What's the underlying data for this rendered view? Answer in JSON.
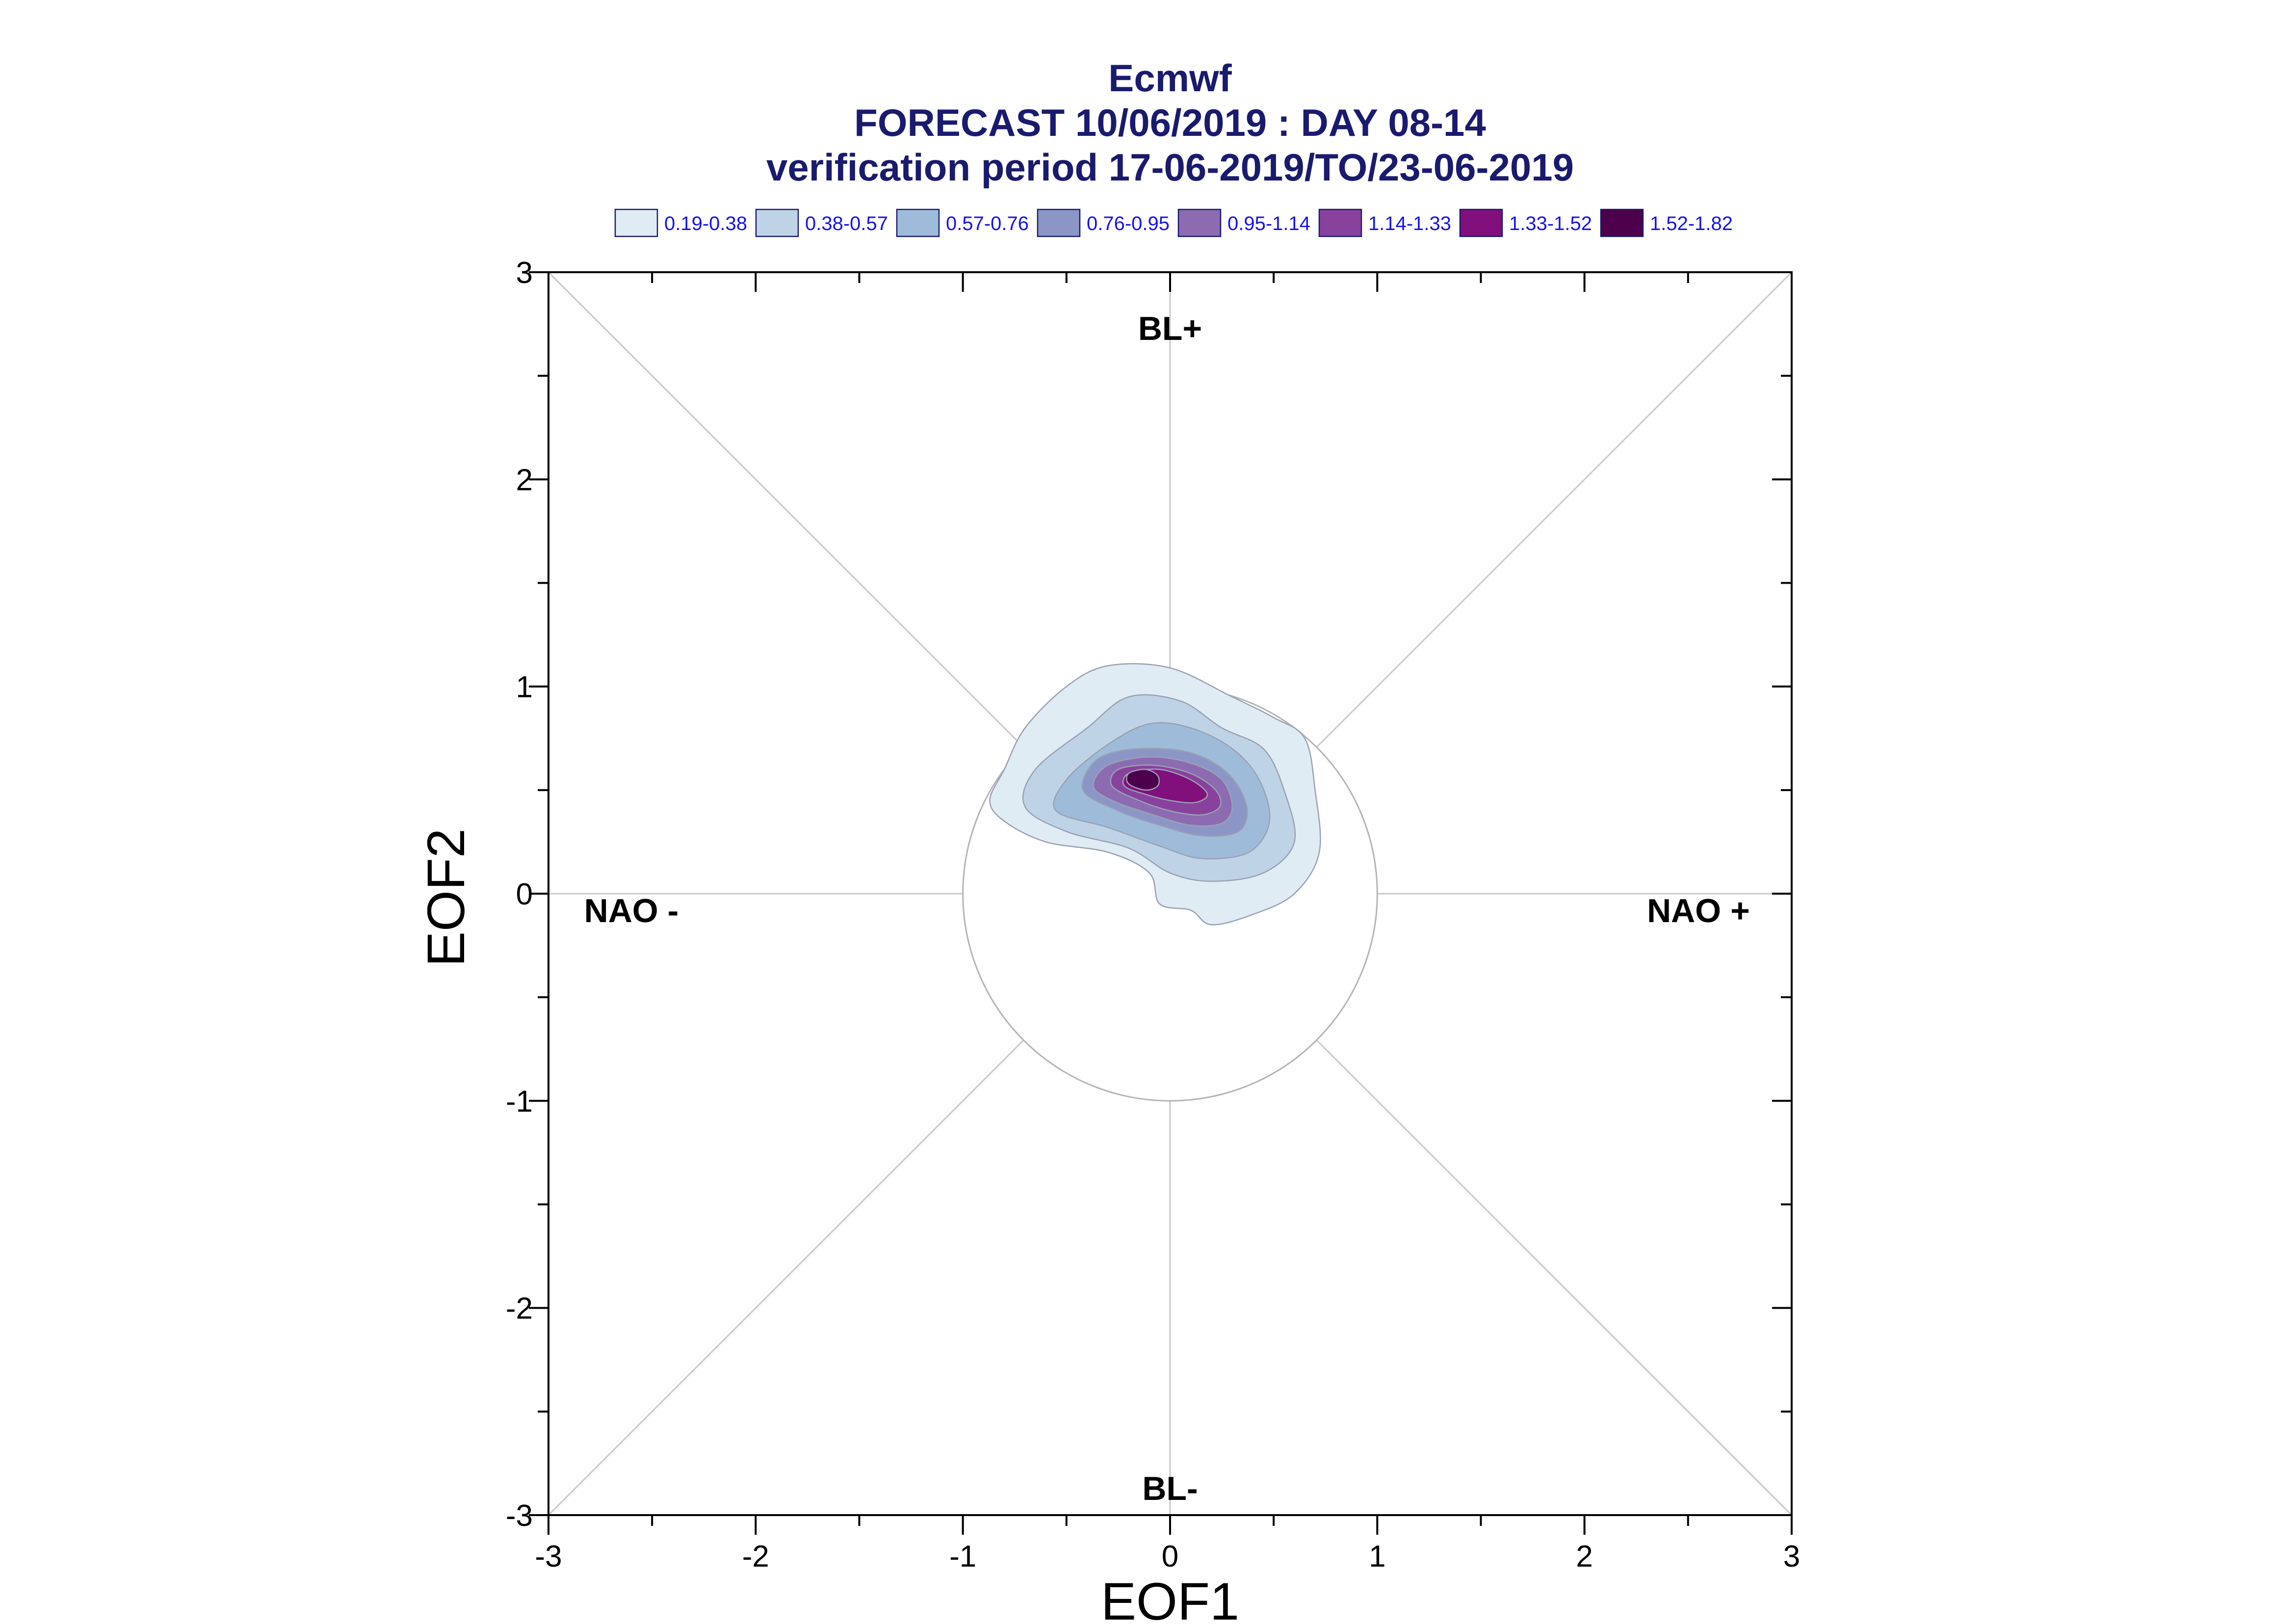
{
  "chart_data": {
    "type": "contour",
    "title": "Ecmwf",
    "subtitle_lines": [
      "FORECAST 10/06/2019 : DAY 08-14",
      "verification period 17-06-2019/TO/23-06-2019"
    ],
    "xlabel": "EOF1",
    "ylabel": "EOF2",
    "xlim": [
      -3,
      3
    ],
    "ylim": [
      -3,
      3
    ],
    "x_ticks": [
      "-3",
      "-2",
      "-1",
      "0",
      "1",
      "2",
      "3"
    ],
    "y_ticks": [
      "3",
      "2",
      "1",
      "0",
      "-1",
      "-2",
      "-3"
    ],
    "grid": false,
    "reference_circle_radius": 1,
    "regime_labels": [
      {
        "text": "BL+",
        "x": 0,
        "y": 2.73
      },
      {
        "text": "BL-",
        "x": 0,
        "y": -2.87
      },
      {
        "text": "NAO -",
        "x": -2.6,
        "y": -0.08
      },
      {
        "text": "NAO +",
        "x": 2.55,
        "y": -0.08
      }
    ],
    "legend": [
      {
        "label": "0.19-0.38",
        "color": "#e0ecf4"
      },
      {
        "label": "0.38-0.57",
        "color": "#bfd3e6"
      },
      {
        "label": "0.57-0.76",
        "color": "#9ebcda"
      },
      {
        "label": "0.76-0.95",
        "color": "#8c96c6"
      },
      {
        "label": "0.95-1.14",
        "color": "#8c6bb1"
      },
      {
        "label": "1.14-1.33",
        "color": "#88419d"
      },
      {
        "label": "1.33-1.52",
        "color": "#810f7c"
      },
      {
        "label": "1.52-1.82",
        "color": "#4d004b"
      }
    ],
    "density_levels": [
      {
        "range": "0.19-0.38",
        "color": "#e0ecf4",
        "outline": [
          [
            -0.5,
            1.0
          ],
          [
            -0.3,
            1.1
          ],
          [
            0.0,
            1.09
          ],
          [
            0.3,
            0.95
          ],
          [
            0.5,
            0.85
          ],
          [
            0.65,
            0.75
          ],
          [
            0.7,
            0.5
          ],
          [
            0.72,
            0.2
          ],
          [
            0.6,
            0.0
          ],
          [
            0.4,
            -0.1
          ],
          [
            0.2,
            -0.15
          ],
          [
            0.1,
            -0.08
          ],
          [
            -0.05,
            -0.05
          ],
          [
            -0.1,
            0.1
          ],
          [
            -0.3,
            0.2
          ],
          [
            -0.6,
            0.25
          ],
          [
            -0.8,
            0.35
          ],
          [
            -0.87,
            0.45
          ],
          [
            -0.8,
            0.6
          ],
          [
            -0.7,
            0.8
          ]
        ]
      },
      {
        "range": "0.38-0.57",
        "color": "#bfd3e6",
        "outline": [
          [
            -0.4,
            0.8
          ],
          [
            -0.2,
            0.95
          ],
          [
            0.05,
            0.93
          ],
          [
            0.25,
            0.8
          ],
          [
            0.45,
            0.7
          ],
          [
            0.55,
            0.5
          ],
          [
            0.6,
            0.25
          ],
          [
            0.45,
            0.1
          ],
          [
            0.2,
            0.06
          ],
          [
            0.0,
            0.1
          ],
          [
            -0.2,
            0.22
          ],
          [
            -0.5,
            0.3
          ],
          [
            -0.7,
            0.42
          ],
          [
            -0.65,
            0.6
          ]
        ]
      },
      {
        "range": "0.57-0.76",
        "color": "#9ebcda",
        "outline": [
          [
            -0.3,
            0.72
          ],
          [
            -0.1,
            0.82
          ],
          [
            0.1,
            0.8
          ],
          [
            0.3,
            0.7
          ],
          [
            0.43,
            0.55
          ],
          [
            0.48,
            0.35
          ],
          [
            0.38,
            0.2
          ],
          [
            0.15,
            0.17
          ],
          [
            -0.05,
            0.23
          ],
          [
            -0.3,
            0.32
          ],
          [
            -0.55,
            0.4
          ],
          [
            -0.5,
            0.55
          ]
        ]
      },
      {
        "range": "0.76-0.95",
        "color": "#8c96c6",
        "outline": [
          [
            -0.35,
            0.65
          ],
          [
            -0.15,
            0.7
          ],
          [
            0.1,
            0.68
          ],
          [
            0.28,
            0.58
          ],
          [
            0.37,
            0.42
          ],
          [
            0.33,
            0.3
          ],
          [
            0.15,
            0.28
          ],
          [
            -0.05,
            0.33
          ],
          [
            -0.25,
            0.4
          ],
          [
            -0.42,
            0.5
          ]
        ]
      },
      {
        "range": "0.95-1.14",
        "color": "#8c6bb1",
        "outline": [
          [
            -0.3,
            0.62
          ],
          [
            -0.1,
            0.66
          ],
          [
            0.1,
            0.63
          ],
          [
            0.25,
            0.55
          ],
          [
            0.3,
            0.42
          ],
          [
            0.25,
            0.34
          ],
          [
            0.1,
            0.33
          ],
          [
            -0.08,
            0.38
          ],
          [
            -0.28,
            0.45
          ],
          [
            -0.37,
            0.52
          ]
        ]
      },
      {
        "range": "1.14-1.33",
        "color": "#88419d",
        "outline": [
          [
            -0.25,
            0.6
          ],
          [
            -0.08,
            0.62
          ],
          [
            0.1,
            0.58
          ],
          [
            0.22,
            0.5
          ],
          [
            0.24,
            0.42
          ],
          [
            0.15,
            0.38
          ],
          [
            0.0,
            0.4
          ],
          [
            -0.15,
            0.45
          ],
          [
            -0.28,
            0.52
          ]
        ]
      },
      {
        "range": "1.33-1.52",
        "color": "#810f7c",
        "outline": [
          [
            -0.2,
            0.58
          ],
          [
            -0.05,
            0.6
          ],
          [
            0.1,
            0.55
          ],
          [
            0.18,
            0.48
          ],
          [
            0.12,
            0.44
          ],
          [
            0.0,
            0.45
          ],
          [
            -0.12,
            0.48
          ],
          [
            -0.22,
            0.52
          ]
        ]
      },
      {
        "range": "1.52-1.82",
        "color": "#4d004b",
        "outline": [
          [
            -0.2,
            0.58
          ],
          [
            -0.12,
            0.6
          ],
          [
            -0.06,
            0.57
          ],
          [
            -0.06,
            0.52
          ],
          [
            -0.12,
            0.5
          ],
          [
            -0.2,
            0.53
          ]
        ]
      }
    ]
  }
}
